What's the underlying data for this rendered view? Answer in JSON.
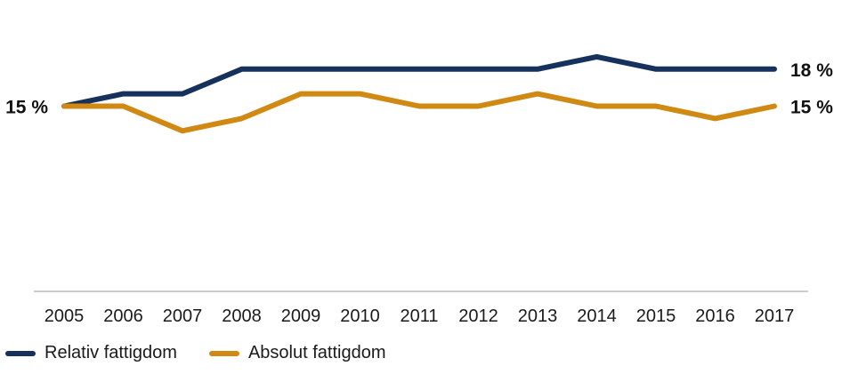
{
  "chart_data": {
    "type": "line",
    "x": [
      "2005",
      "2006",
      "2007",
      "2008",
      "2009",
      "2010",
      "2011",
      "2012",
      "2013",
      "2014",
      "2015",
      "2016",
      "2017"
    ],
    "ylim": [
      0,
      19.5
    ],
    "grid": false,
    "legend_position": "bottom-left",
    "series": [
      {
        "name": "Relativ fattigdom",
        "color": "#16325c",
        "values": [
          15,
          16,
          16,
          18,
          18,
          18,
          18,
          18,
          18,
          19,
          18,
          18,
          18
        ],
        "start_label": "15 %",
        "end_label": "18 %"
      },
      {
        "name": "Absolut fattigdom",
        "color": "#d08a14",
        "values": [
          15,
          15,
          13,
          14,
          16,
          16,
          15,
          15,
          16,
          15,
          15,
          14,
          15
        ],
        "start_label": "",
        "end_label": "15 %"
      }
    ]
  }
}
